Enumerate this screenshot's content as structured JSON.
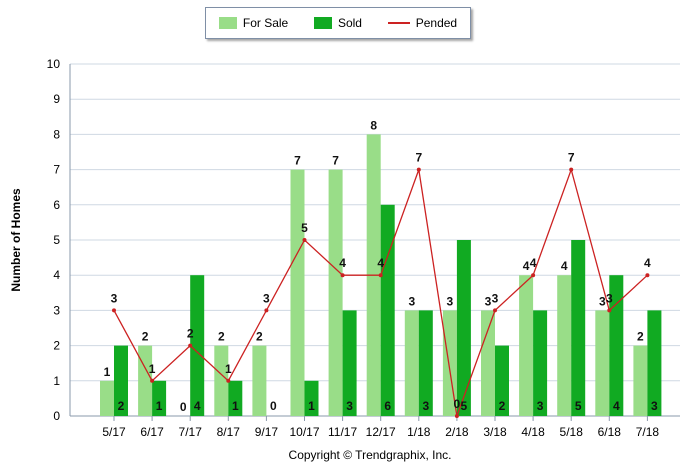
{
  "chart_data": {
    "type": "bar",
    "categories": [
      "5/17",
      "6/17",
      "7/17",
      "8/17",
      "9/17",
      "10/17",
      "11/17",
      "12/17",
      "1/18",
      "2/18",
      "3/18",
      "4/18",
      "5/18",
      "6/18",
      "7/18"
    ],
    "series": [
      {
        "name": "For Sale",
        "type": "bar",
        "color": "#99dd88",
        "values": [
          1,
          2,
          0,
          2,
          2,
          7,
          7,
          8,
          3,
          3,
          3,
          4,
          4,
          3,
          2
        ]
      },
      {
        "name": "Sold",
        "type": "bar",
        "color": "#11aa22",
        "values": [
          2,
          1,
          4,
          1,
          0,
          1,
          3,
          6,
          3,
          5,
          2,
          3,
          5,
          4,
          3
        ]
      },
      {
        "name": "Pended",
        "type": "line",
        "color": "#cc2222",
        "values": [
          3,
          1,
          2,
          1,
          3,
          5,
          4,
          4,
          7,
          0,
          3,
          4,
          7,
          3,
          4
        ]
      }
    ],
    "ylabel": "Number of Homes",
    "ylim": [
      0,
      10
    ],
    "yticks": [
      0,
      1,
      2,
      3,
      4,
      5,
      6,
      7,
      8,
      9,
      10
    ],
    "grid": true,
    "legend_position": "top-center"
  },
  "footer": "Copyright © Trendgraphix, Inc."
}
